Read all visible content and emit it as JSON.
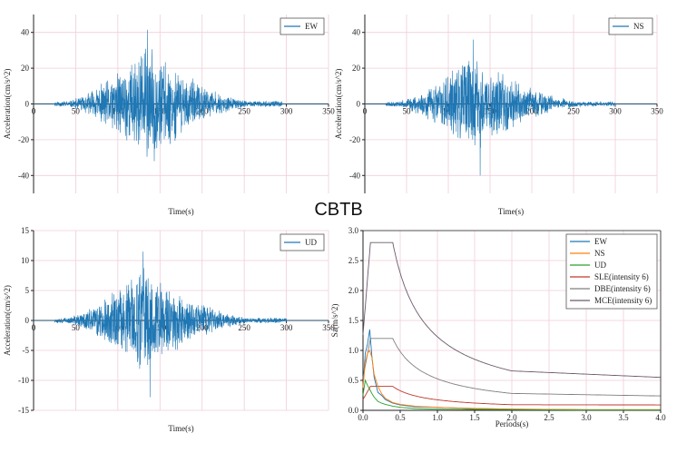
{
  "main_title": "CBTB",
  "colors": {
    "wave": "#1f77b4",
    "axis": "#222222",
    "grid": "#f0cdd9",
    "EW": "#1f77b4",
    "NS": "#ff7f0e",
    "UD": "#2ca02c",
    "SLE": "#c0392b",
    "DBE": "#7f7f7f",
    "MCE": "#6b5a6b"
  },
  "chart_data": [
    {
      "type": "line",
      "id": "ew",
      "legend": "EW",
      "xlabel": "Time(s)",
      "ylabel": "Acceleration(cm/s^2)",
      "xlim": [
        0,
        350
      ],
      "ylim": [
        -50,
        50
      ],
      "xticks": [
        0,
        50,
        100,
        150,
        200,
        250,
        300,
        350
      ],
      "yticks": [
        -40,
        -20,
        0,
        20,
        40
      ],
      "envelope": {
        "start": 25,
        "peak_time": 135,
        "end": 295,
        "peak": 41.5,
        "min": -32,
        "seed": 11
      }
    },
    {
      "type": "line",
      "id": "ns",
      "legend": "NS",
      "xlabel": "Time(s)",
      "ylabel": "Acceleration(cm/s^2)",
      "xlim": [
        0,
        350
      ],
      "ylim": [
        -50,
        50
      ],
      "xticks": [
        0,
        50,
        100,
        150,
        200,
        250,
        300,
        350
      ],
      "yticks": [
        -40,
        -20,
        0,
        20,
        40
      ],
      "envelope": {
        "start": 25,
        "peak_time": 130,
        "end": 300,
        "peak": 36,
        "min": -40,
        "seed": 23
      }
    },
    {
      "type": "line",
      "id": "ud",
      "legend": "UD",
      "xlabel": "Time(s)",
      "ylabel": "Acceleration(cm/s^2)",
      "xlim": [
        0,
        350
      ],
      "ylim": [
        -15,
        15
      ],
      "xticks": [
        0,
        50,
        100,
        150,
        200,
        250,
        300,
        350
      ],
      "yticks": [
        -15,
        -10,
        -5,
        0,
        5,
        10,
        15
      ],
      "envelope": {
        "start": 25,
        "peak_time": 130,
        "end": 300,
        "peak": 11.5,
        "min": -12.8,
        "seed": 37
      }
    },
    {
      "type": "line",
      "id": "spectra",
      "xlabel": "Periods(s)",
      "ylabel": "Sa(m/s^2)",
      "xlim": [
        0,
        4.0
      ],
      "ylim": [
        0,
        3.0
      ],
      "xticks": [
        0.0,
        0.5,
        1.0,
        1.5,
        2.0,
        2.5,
        3.0,
        3.5,
        4.0
      ],
      "yticks": [
        0.0,
        0.5,
        1.0,
        1.5,
        2.0,
        2.5,
        3.0
      ],
      "legend_entries": [
        "EW",
        "NS",
        "UD",
        "SLE(intensity 6)",
        "DBE(intensity 6)",
        "MCE(intensity 6)"
      ],
      "series": [
        {
          "name": "SLE(intensity 6)",
          "code": {
            "Tg": 0.4,
            "amax": 0.4,
            "Tm": 2.0,
            "floor": 0.09
          }
        },
        {
          "name": "DBE(intensity 6)",
          "code": {
            "Tg": 0.4,
            "amax": 1.2,
            "Tm": 2.0,
            "floor": 0.24
          }
        },
        {
          "name": "MCE(intensity 6)",
          "code": {
            "Tg": 0.4,
            "amax": 2.8,
            "Tm": 2.0,
            "floor": 0.55
          }
        },
        {
          "name": "EW",
          "x": [
            0.0,
            0.03,
            0.06,
            0.09,
            0.12,
            0.15,
            0.2,
            0.25,
            0.3,
            0.4,
            0.5,
            0.7,
            1.0,
            1.5,
            2.0,
            3.0,
            4.0
          ],
          "y": [
            0.42,
            0.95,
            1.1,
            1.35,
            0.9,
            0.55,
            0.3,
            0.25,
            0.18,
            0.12,
            0.09,
            0.06,
            0.05,
            0.03,
            0.02,
            0.01,
            0.01
          ]
        },
        {
          "name": "NS",
          "x": [
            0.0,
            0.03,
            0.06,
            0.09,
            0.12,
            0.15,
            0.2,
            0.25,
            0.3,
            0.4,
            0.5,
            0.7,
            1.0,
            1.5,
            2.0,
            3.0,
            4.0
          ],
          "y": [
            0.38,
            0.8,
            0.95,
            1.0,
            0.88,
            0.6,
            0.4,
            0.28,
            0.2,
            0.13,
            0.1,
            0.07,
            0.05,
            0.03,
            0.02,
            0.01,
            0.01
          ]
        },
        {
          "name": "UD",
          "x": [
            0.0,
            0.03,
            0.06,
            0.09,
            0.12,
            0.15,
            0.2,
            0.25,
            0.3,
            0.4,
            0.5,
            0.7,
            1.0,
            1.5,
            2.0,
            3.0,
            4.0
          ],
          "y": [
            0.25,
            0.5,
            0.42,
            0.35,
            0.28,
            0.22,
            0.15,
            0.12,
            0.1,
            0.07,
            0.05,
            0.03,
            0.02,
            0.015,
            0.01,
            0.005,
            0.005
          ]
        }
      ]
    }
  ]
}
